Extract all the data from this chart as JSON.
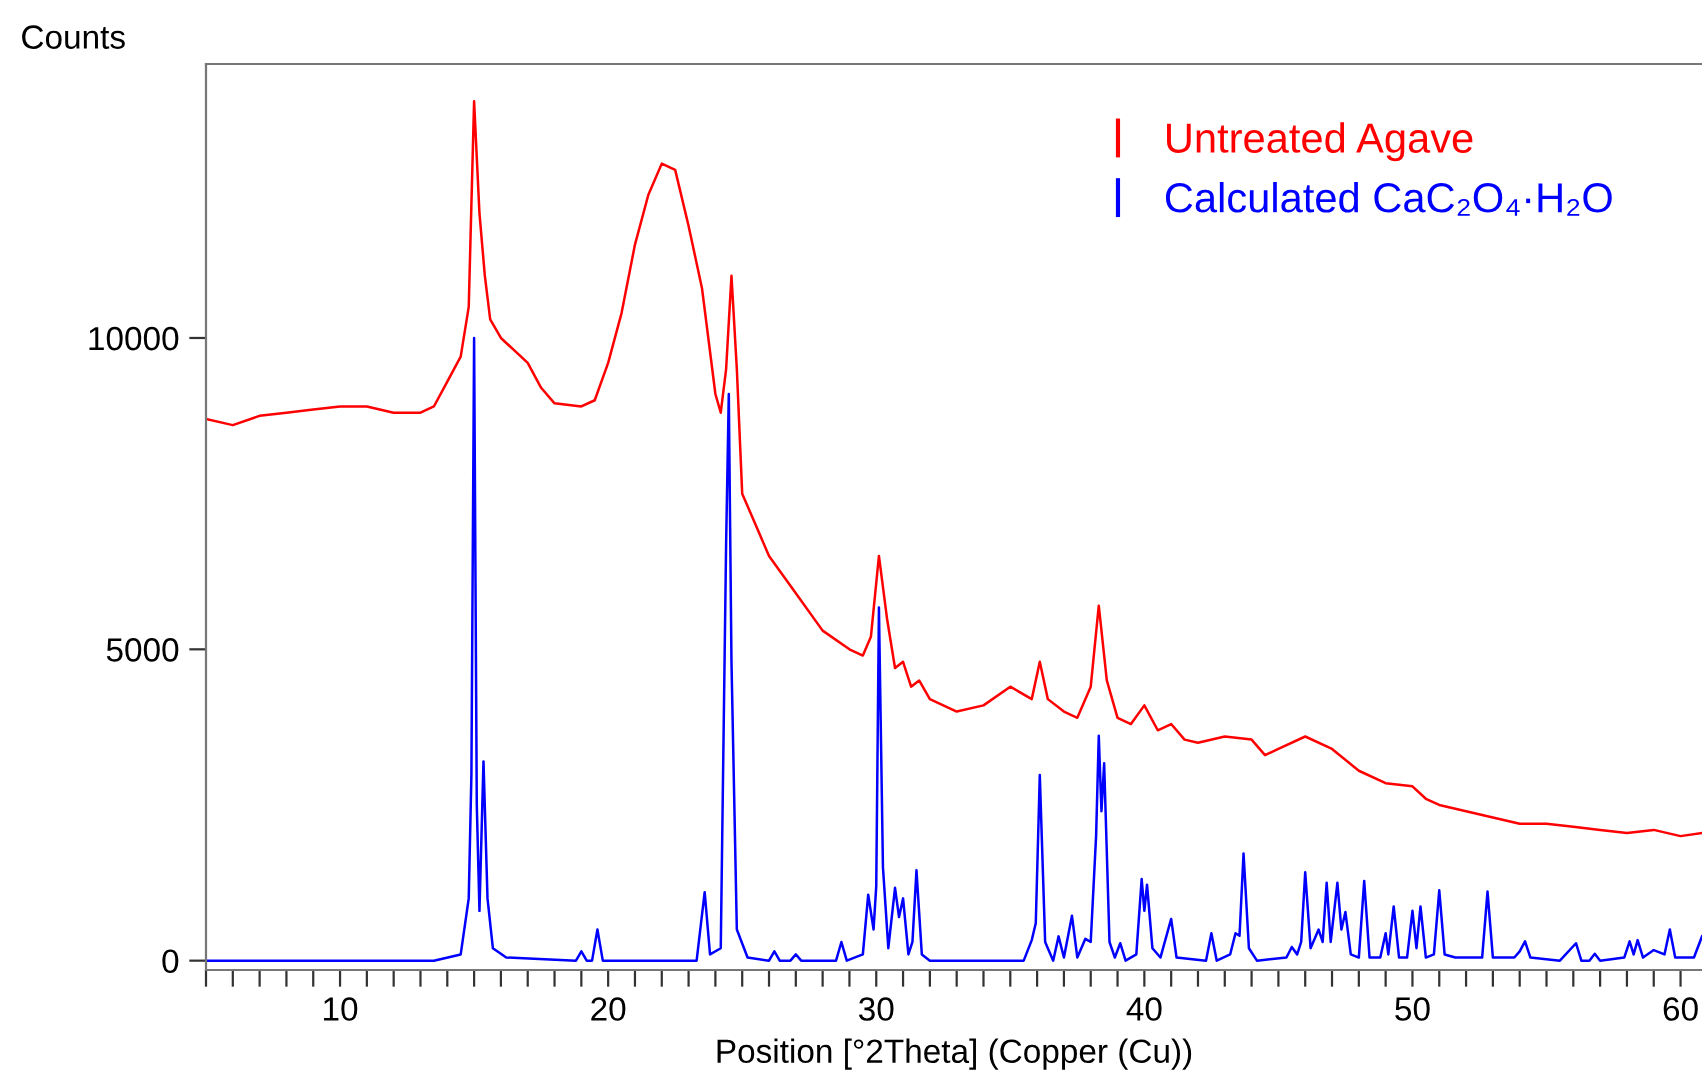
{
  "chart_data": {
    "type": "line",
    "xlabel": "Position [°2Theta] (Copper (Cu))",
    "ylabel": "Counts",
    "xlim": [
      5,
      60.8
    ],
    "ylim": [
      -150,
      14400
    ],
    "xticks": [
      {
        "value": 5,
        "label": null
      },
      {
        "value": 6,
        "label": null
      },
      {
        "value": 7,
        "label": null
      },
      {
        "value": 8,
        "label": null
      },
      {
        "value": 9,
        "label": null
      },
      10,
      {
        "value": 11,
        "label": null
      },
      {
        "value": 12,
        "label": null
      },
      {
        "value": 13,
        "label": null
      },
      {
        "value": 14,
        "label": null
      },
      {
        "value": 15,
        "label": null
      },
      {
        "value": 16,
        "label": null
      },
      {
        "value": 17,
        "label": null
      },
      {
        "value": 18,
        "label": null
      },
      {
        "value": 19,
        "label": null
      },
      20,
      {
        "value": 21,
        "label": null
      },
      {
        "value": 22,
        "label": null
      },
      {
        "value": 23,
        "label": null
      },
      {
        "value": 24,
        "label": null
      },
      {
        "value": 25,
        "label": null
      },
      {
        "value": 26,
        "label": null
      },
      {
        "value": 27,
        "label": null
      },
      {
        "value": 28,
        "label": null
      },
      {
        "value": 29,
        "label": null
      },
      30,
      {
        "value": 31,
        "label": null
      },
      {
        "value": 32,
        "label": null
      },
      {
        "value": 33,
        "label": null
      },
      {
        "value": 34,
        "label": null
      },
      {
        "value": 35,
        "label": null
      },
      {
        "value": 36,
        "label": null
      },
      {
        "value": 37,
        "label": null
      },
      {
        "value": 38,
        "label": null
      },
      {
        "value": 39,
        "label": null
      },
      40,
      {
        "value": 41,
        "label": null
      },
      {
        "value": 42,
        "label": null
      },
      {
        "value": 43,
        "label": null
      },
      {
        "value": 44,
        "label": null
      },
      {
        "value": 45,
        "label": null
      },
      {
        "value": 46,
        "label": null
      },
      {
        "value": 47,
        "label": null
      },
      {
        "value": 48,
        "label": null
      },
      {
        "value": 49,
        "label": null
      },
      50,
      {
        "value": 51,
        "label": null
      },
      {
        "value": 52,
        "label": null
      },
      {
        "value": 53,
        "label": null
      },
      {
        "value": 54,
        "label": null
      },
      {
        "value": 55,
        "label": null
      },
      {
        "value": 56,
        "label": null
      },
      {
        "value": 57,
        "label": null
      },
      {
        "value": 58,
        "label": null
      },
      {
        "value": 59,
        "label": null
      },
      60
    ],
    "yticks": [
      0,
      5000,
      10000
    ],
    "grid": false,
    "legend": "top right",
    "marker": "none",
    "line_style": "solid",
    "series": [
      {
        "name": "Untreated Agave",
        "color": "#ff0000",
        "x": [
          5,
          6,
          7,
          8,
          9,
          10,
          11,
          12,
          13,
          13.5,
          14,
          14.5,
          14.8,
          15.0,
          15.2,
          15.4,
          15.6,
          16,
          17,
          17.5,
          18,
          19,
          19.5,
          20,
          20.5,
          21,
          21.5,
          22,
          22.5,
          23,
          23.5,
          24,
          24.2,
          24.4,
          24.6,
          24.8,
          25,
          26,
          27,
          28,
          29,
          29.5,
          29.8,
          30.1,
          30.4,
          30.7,
          31,
          31.3,
          31.6,
          32,
          33,
          34,
          35,
          35.8,
          36.1,
          36.4,
          37,
          37.5,
          38,
          38.3,
          38.6,
          39,
          39.5,
          40,
          40.5,
          41,
          41.5,
          42,
          43,
          44,
          44.5,
          45,
          46,
          47,
          48,
          49,
          50,
          50.5,
          51,
          52,
          53,
          54,
          55,
          56,
          57,
          58,
          59,
          60,
          60.8
        ],
        "values": [
          8700,
          8600,
          8750,
          8800,
          8850,
          8900,
          8900,
          8800,
          8800,
          8900,
          9300,
          9700,
          10500,
          13800,
          12000,
          11000,
          10300,
          10000,
          9600,
          9200,
          8950,
          8900,
          9000,
          9600,
          10400,
          11500,
          12300,
          12800,
          12700,
          11800,
          10800,
          9100,
          8800,
          9500,
          11000,
          9500,
          7500,
          6500,
          5900,
          5300,
          5000,
          4900,
          5200,
          6500,
          5500,
          4700,
          4800,
          4400,
          4500,
          4200,
          4000,
          4100,
          4400,
          4200,
          4800,
          4200,
          4000,
          3900,
          4400,
          5700,
          4500,
          3900,
          3800,
          4100,
          3700,
          3800,
          3550,
          3500,
          3600,
          3550,
          3300,
          3400,
          3600,
          3400,
          3050,
          2850,
          2800,
          2600,
          2500,
          2400,
          2300,
          2200,
          2200,
          2150,
          2100,
          2050,
          2100,
          2000,
          2050
        ]
      },
      {
        "name": "Calculated CaC₂O₄·H₂O",
        "color": "#0000ff",
        "x": [
          5,
          13.5,
          14.5,
          14.8,
          14.9,
          15.0,
          15.1,
          15.2,
          15.35,
          15.5,
          15.7,
          16.2,
          18.8,
          19.0,
          19.2,
          19.4,
          19.6,
          19.8,
          23.3,
          23.6,
          23.8,
          24.2,
          24.4,
          24.5,
          24.6,
          24.8,
          25.2,
          26.0,
          26.2,
          26.4,
          26.8,
          27.0,
          27.2,
          28.5,
          28.7,
          28.9,
          29.5,
          29.7,
          29.9,
          30.0,
          30.1,
          30.25,
          30.45,
          30.7,
          30.85,
          31.0,
          31.2,
          31.35,
          31.5,
          31.7,
          32,
          35.5,
          35.8,
          35.95,
          36.1,
          36.3,
          36.6,
          36.8,
          37.0,
          37.3,
          37.5,
          37.8,
          38.0,
          38.2,
          38.3,
          38.4,
          38.5,
          38.7,
          38.9,
          39.1,
          39.3,
          39.7,
          39.9,
          40.0,
          40.1,
          40.3,
          40.6,
          41.0,
          41.2,
          42.3,
          42.5,
          42.7,
          43.2,
          43.4,
          43.55,
          43.7,
          43.9,
          44.2,
          45.3,
          45.5,
          45.7,
          45.85,
          46.0,
          46.2,
          46.5,
          46.65,
          46.8,
          46.95,
          47.2,
          47.35,
          47.5,
          47.7,
          48.0,
          48.2,
          48.4,
          48.8,
          49.0,
          49.1,
          49.3,
          49.5,
          49.8,
          50.0,
          50.15,
          50.3,
          50.5,
          50.8,
          51.0,
          51.2,
          51.6,
          52.6,
          52.8,
          53.0,
          53.8,
          54.0,
          54.2,
          54.4,
          55.5,
          56.1,
          56.3,
          56.6,
          56.8,
          57.0,
          57.9,
          58.1,
          58.25,
          58.4,
          58.6,
          59.0,
          59.4,
          59.6,
          59.8,
          60.5,
          60.8
        ],
        "values": [
          0,
          0,
          100,
          1000,
          3000,
          10000,
          2500,
          800,
          3200,
          1000,
          200,
          50,
          0,
          150,
          0,
          0,
          500,
          0,
          0,
          1100,
          100,
          200,
          6700,
          9100,
          4800,
          500,
          50,
          0,
          150,
          0,
          0,
          100,
          0,
          0,
          300,
          0,
          100,
          1060,
          500,
          1200,
          5670,
          1500,
          200,
          1170,
          700,
          1000,
          100,
          300,
          1450,
          100,
          0,
          0,
          330,
          600,
          2980,
          300,
          0,
          390,
          50,
          720,
          50,
          350,
          300,
          2000,
          3610,
          2400,
          3170,
          300,
          50,
          280,
          0,
          100,
          1310,
          800,
          1220,
          200,
          50,
          670,
          50,
          0,
          440,
          0,
          100,
          440,
          400,
          1720,
          200,
          0,
          50,
          220,
          100,
          300,
          1420,
          200,
          500,
          300,
          1250,
          300,
          1250,
          500,
          780,
          100,
          50,
          1280,
          50,
          50,
          440,
          100,
          870,
          50,
          50,
          800,
          200,
          870,
          50,
          100,
          1130,
          100,
          50,
          50,
          1110,
          50,
          50,
          150,
          310,
          50,
          0,
          280,
          0,
          0,
          110,
          0,
          50,
          310,
          100,
          330,
          50,
          170,
          100,
          500,
          50,
          50,
          390
        ]
      }
    ]
  }
}
